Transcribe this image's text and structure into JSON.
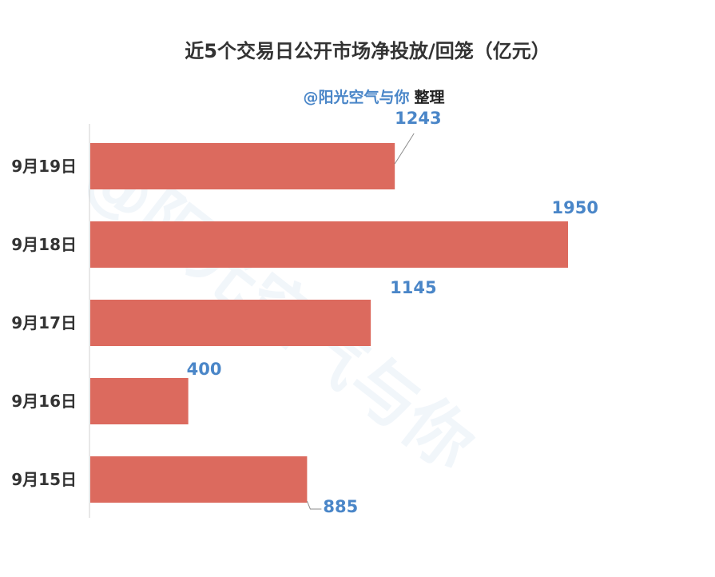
{
  "chart_data": {
    "type": "bar",
    "orientation": "horizontal",
    "title": "近5个交易日公开市场净投放/回笼（亿元）",
    "credit": {
      "handle": "@阳光空气与你",
      "suffix": "整理"
    },
    "watermark": "@阳光空气与你",
    "categories": [
      "9月19日",
      "9月18日",
      "9月17日",
      "9月16日",
      "9月15日"
    ],
    "values": [
      1243,
      1950,
      1145,
      400,
      885
    ],
    "value_labels": [
      "1243",
      "1950",
      "1145",
      "400",
      "885"
    ],
    "xlim": [
      0,
      2000
    ],
    "bar_color": "#dc6a5e",
    "label_color": "#4a86c8",
    "axis_color": "#d0d0d0",
    "grid": false,
    "legend": "none"
  }
}
